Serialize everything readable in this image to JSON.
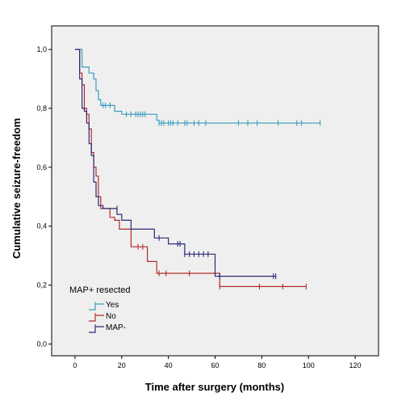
{
  "chart_data": {
    "type": "line",
    "subtype": "kaplan-meier-step",
    "title": "",
    "xlabel": "Time after surgery (months)",
    "ylabel": "Cumulative seizure-freedom",
    "xlim": [
      -10,
      130
    ],
    "ylim": [
      -0.04,
      1.08
    ],
    "x_ticks": [
      0,
      20,
      40,
      60,
      80,
      100,
      120
    ],
    "x_tick_labels": [
      "0",
      "20",
      "40",
      "60",
      "80",
      "100",
      "120"
    ],
    "y_ticks": [
      0.0,
      0.2,
      0.4,
      0.6,
      0.8,
      1.0
    ],
    "y_tick_labels": [
      "0,0",
      "0,2",
      "0,4",
      "0,6",
      "0,8",
      "1,0"
    ],
    "grid": false,
    "background": "#efefef",
    "legend": {
      "title": "MAP+ resected",
      "placement": "bottom-left"
    },
    "series": [
      {
        "name": "Yes",
        "color": "#3a9fbf",
        "steps": [
          [
            0,
            1.0
          ],
          [
            3,
            0.94
          ],
          [
            6,
            0.92
          ],
          [
            8,
            0.9
          ],
          [
            9,
            0.86
          ],
          [
            10,
            0.83
          ],
          [
            11,
            0.81
          ],
          [
            17,
            0.79
          ],
          [
            20,
            0.78
          ],
          [
            30,
            0.78
          ],
          [
            35,
            0.76
          ],
          [
            36,
            0.75
          ],
          [
            105,
            0.75
          ]
        ],
        "censored": [
          [
            12,
            0.81
          ],
          [
            13,
            0.81
          ],
          [
            15,
            0.81
          ],
          [
            22,
            0.78
          ],
          [
            24,
            0.78
          ],
          [
            26,
            0.78
          ],
          [
            27,
            0.78
          ],
          [
            28,
            0.78
          ],
          [
            29,
            0.78
          ],
          [
            30,
            0.78
          ],
          [
            36,
            0.75
          ],
          [
            37,
            0.75
          ],
          [
            38,
            0.75
          ],
          [
            40,
            0.75
          ],
          [
            41,
            0.75
          ],
          [
            42,
            0.75
          ],
          [
            44,
            0.75
          ],
          [
            47,
            0.75
          ],
          [
            48,
            0.75
          ],
          [
            51,
            0.75
          ],
          [
            53,
            0.75
          ],
          [
            56,
            0.75
          ],
          [
            70,
            0.75
          ],
          [
            74,
            0.75
          ],
          [
            78,
            0.75
          ],
          [
            87,
            0.75
          ],
          [
            95,
            0.75
          ],
          [
            97,
            0.75
          ],
          [
            105,
            0.75
          ]
        ]
      },
      {
        "name": "No",
        "color": "#b52a2a",
        "steps": [
          [
            0,
            1.0
          ],
          [
            2,
            0.92
          ],
          [
            3,
            0.88
          ],
          [
            4,
            0.8
          ],
          [
            5,
            0.78
          ],
          [
            6,
            0.73
          ],
          [
            7,
            0.65
          ],
          [
            8,
            0.6
          ],
          [
            9,
            0.57
          ],
          [
            10,
            0.5
          ],
          [
            11,
            0.46
          ],
          [
            13,
            0.46
          ],
          [
            15,
            0.43
          ],
          [
            17,
            0.42
          ],
          [
            19,
            0.39
          ],
          [
            24,
            0.33
          ],
          [
            27,
            0.33
          ],
          [
            31,
            0.28
          ],
          [
            35,
            0.24
          ],
          [
            61,
            0.24
          ],
          [
            62,
            0.195
          ],
          [
            99,
            0.195
          ]
        ],
        "censored": [
          [
            27,
            0.33
          ],
          [
            29,
            0.33
          ],
          [
            36,
            0.24
          ],
          [
            39,
            0.24
          ],
          [
            49,
            0.24
          ],
          [
            62,
            0.195
          ],
          [
            79,
            0.195
          ],
          [
            89,
            0.195
          ],
          [
            99,
            0.195
          ]
        ]
      },
      {
        "name": "MAP-",
        "color": "#2b2a7a",
        "steps": [
          [
            0,
            1.0
          ],
          [
            2,
            0.9
          ],
          [
            3,
            0.8
          ],
          [
            4,
            0.79
          ],
          [
            5,
            0.75
          ],
          [
            6,
            0.68
          ],
          [
            7,
            0.64
          ],
          [
            8,
            0.55
          ],
          [
            9,
            0.5
          ],
          [
            10,
            0.47
          ],
          [
            12,
            0.46
          ],
          [
            18,
            0.44
          ],
          [
            20,
            0.42
          ],
          [
            24,
            0.39
          ],
          [
            34,
            0.36
          ],
          [
            40,
            0.34
          ],
          [
            47,
            0.305
          ],
          [
            60,
            0.23
          ],
          [
            86,
            0.23
          ]
        ],
        "censored": [
          [
            18,
            0.46
          ],
          [
            36,
            0.36
          ],
          [
            44,
            0.34
          ],
          [
            45,
            0.34
          ],
          [
            47,
            0.305
          ],
          [
            49,
            0.305
          ],
          [
            51,
            0.305
          ],
          [
            53,
            0.305
          ],
          [
            55,
            0.305
          ],
          [
            57,
            0.305
          ],
          [
            62,
            0.23
          ],
          [
            85,
            0.23
          ],
          [
            86,
            0.23
          ]
        ]
      }
    ]
  }
}
